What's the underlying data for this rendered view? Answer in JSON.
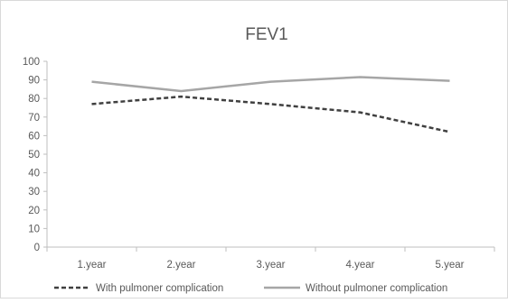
{
  "chart_data": {
    "type": "line",
    "title": "FEV1",
    "categories": [
      "1.year",
      "2.year",
      "3.year",
      "4.year",
      "5.year"
    ],
    "ylim": [
      0,
      100
    ],
    "yticks": [
      0,
      10,
      20,
      30,
      40,
      50,
      60,
      70,
      80,
      90,
      100
    ],
    "grid": false,
    "legend": "bottom",
    "series": [
      {
        "name": "With pulmoner complication",
        "values": [
          77,
          81,
          77,
          72.5,
          62
        ],
        "color": "#404040",
        "style": "dashed"
      },
      {
        "name": "Without pulmoner complication",
        "values": [
          89,
          84,
          89,
          91.5,
          89.5
        ],
        "color": "#a6a6a6",
        "style": "solid"
      }
    ]
  }
}
